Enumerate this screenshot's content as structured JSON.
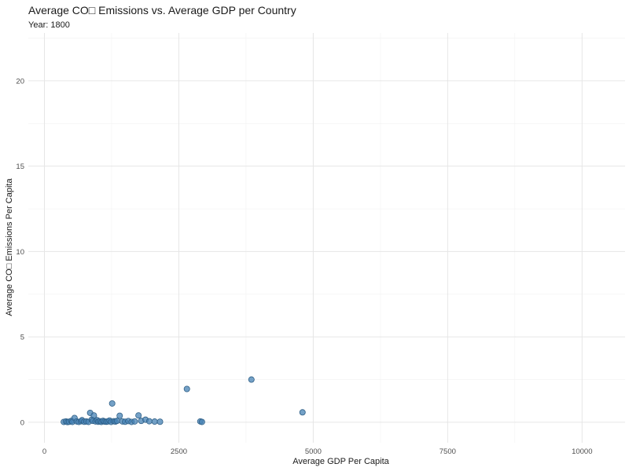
{
  "chart_data": {
    "type": "scatter",
    "title": "Average CO□ Emissions vs. Average GDP per Country",
    "subtitle": "Year: 1800",
    "xlabel": "Average GDP Per Capita",
    "ylabel": "Average CO□ Emissions Per Capita",
    "xlim": [
      -300,
      10800
    ],
    "ylim": [
      -1.2,
      22.8
    ],
    "x_ticks": [
      0,
      2500,
      5000,
      7500,
      10000
    ],
    "x_tick_labels": [
      "0",
      "2500",
      "5000",
      "7500",
      "10000"
    ],
    "y_ticks": [
      0,
      5,
      10,
      15,
      20
    ],
    "y_tick_labels": [
      "0",
      "5",
      "10",
      "15",
      "20"
    ],
    "grid": true,
    "legend": "none",
    "point_color": "#4682b4",
    "points": [
      {
        "x": 360,
        "y": 0.02
      },
      {
        "x": 400,
        "y": 0.05
      },
      {
        "x": 430,
        "y": 0.01
      },
      {
        "x": 460,
        "y": 0.03
      },
      {
        "x": 500,
        "y": 0.08
      },
      {
        "x": 520,
        "y": 0.02
      },
      {
        "x": 560,
        "y": 0.25
      },
      {
        "x": 600,
        "y": 0.05
      },
      {
        "x": 640,
        "y": 0.02
      },
      {
        "x": 680,
        "y": 0.06
      },
      {
        "x": 700,
        "y": 0.12
      },
      {
        "x": 740,
        "y": 0.03
      },
      {
        "x": 780,
        "y": 0.05
      },
      {
        "x": 820,
        "y": 0.02
      },
      {
        "x": 850,
        "y": 0.55
      },
      {
        "x": 880,
        "y": 0.15
      },
      {
        "x": 900,
        "y": 0.08
      },
      {
        "x": 920,
        "y": 0.4
      },
      {
        "x": 950,
        "y": 0.05
      },
      {
        "x": 980,
        "y": 0.12
      },
      {
        "x": 1000,
        "y": 0.03
      },
      {
        "x": 1030,
        "y": 0.06
      },
      {
        "x": 1060,
        "y": 0.02
      },
      {
        "x": 1090,
        "y": 0.08
      },
      {
        "x": 1120,
        "y": 0.04
      },
      {
        "x": 1150,
        "y": 0.03
      },
      {
        "x": 1180,
        "y": 0.05
      },
      {
        "x": 1210,
        "y": 0.1
      },
      {
        "x": 1240,
        "y": 0.02
      },
      {
        "x": 1260,
        "y": 1.1
      },
      {
        "x": 1290,
        "y": 0.06
      },
      {
        "x": 1320,
        "y": 0.04
      },
      {
        "x": 1350,
        "y": 0.08
      },
      {
        "x": 1400,
        "y": 0.38
      },
      {
        "x": 1450,
        "y": 0.05
      },
      {
        "x": 1500,
        "y": 0.03
      },
      {
        "x": 1560,
        "y": 0.07
      },
      {
        "x": 1620,
        "y": 0.02
      },
      {
        "x": 1680,
        "y": 0.05
      },
      {
        "x": 1750,
        "y": 0.4
      },
      {
        "x": 1800,
        "y": 0.08
      },
      {
        "x": 1880,
        "y": 0.15
      },
      {
        "x": 1950,
        "y": 0.06
      },
      {
        "x": 2050,
        "y": 0.04
      },
      {
        "x": 2150,
        "y": 0.03
      },
      {
        "x": 2650,
        "y": 1.95
      },
      {
        "x": 2900,
        "y": 0.05
      },
      {
        "x": 2930,
        "y": 0.02
      },
      {
        "x": 3850,
        "y": 2.5
      },
      {
        "x": 4800,
        "y": 0.58
      }
    ]
  }
}
